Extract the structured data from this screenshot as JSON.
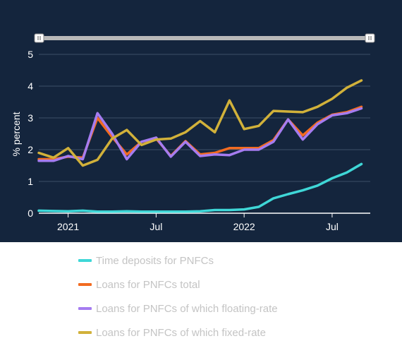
{
  "chart_data": {
    "type": "line",
    "ylabel": "% percent",
    "ylim": [
      0,
      5
    ],
    "y_ticks": [
      "0",
      "1",
      "2",
      "3",
      "4",
      "5"
    ],
    "x_ticks": [
      "2021",
      "Jul",
      "2022",
      "Jul"
    ],
    "x_tick_months": [
      1,
      7,
      13,
      19
    ],
    "x": [
      -1,
      0,
      1,
      2,
      3,
      4,
      5,
      6,
      7,
      8,
      9,
      10,
      11,
      12,
      13,
      14,
      15,
      16,
      17,
      18,
      19,
      20,
      21
    ],
    "series": [
      {
        "name": "Time deposits for PNFCs",
        "color": "#3fd7d7",
        "values": [
          0.08,
          0.07,
          0.06,
          0.08,
          0.05,
          0.05,
          0.06,
          0.05,
          0.05,
          0.05,
          0.05,
          0.06,
          0.1,
          0.1,
          0.12,
          0.2,
          0.47,
          0.6,
          0.72,
          0.87,
          1.1,
          1.28,
          1.55
        ]
      },
      {
        "name": "Loans for PNFCs total",
        "color": "#f26b21",
        "values": [
          1.7,
          1.7,
          1.78,
          1.75,
          3.0,
          2.4,
          1.85,
          2.25,
          2.35,
          1.8,
          2.27,
          1.85,
          1.9,
          2.05,
          2.05,
          2.05,
          2.3,
          2.95,
          2.45,
          2.85,
          3.1,
          3.18,
          3.35
        ]
      },
      {
        "name": "Loans for PNFCs of which floating-rate",
        "color": "#a57cf0",
        "values": [
          1.65,
          1.65,
          1.8,
          1.7,
          3.15,
          2.5,
          1.7,
          2.25,
          2.38,
          1.78,
          2.25,
          1.8,
          1.85,
          1.83,
          2.0,
          2.0,
          2.25,
          2.95,
          2.32,
          2.8,
          3.08,
          3.15,
          3.3
        ]
      },
      {
        "name": "Loans for PNFCs of which fixed-rate",
        "color": "#d1b13a",
        "values": [
          1.9,
          1.75,
          2.05,
          1.5,
          1.68,
          2.35,
          2.62,
          2.15,
          2.32,
          2.35,
          2.55,
          2.9,
          2.55,
          3.55,
          2.65,
          2.75,
          3.22,
          3.2,
          3.18,
          3.35,
          3.6,
          3.95,
          4.18
        ]
      }
    ],
    "grid": true,
    "legend_position": "bottom"
  }
}
